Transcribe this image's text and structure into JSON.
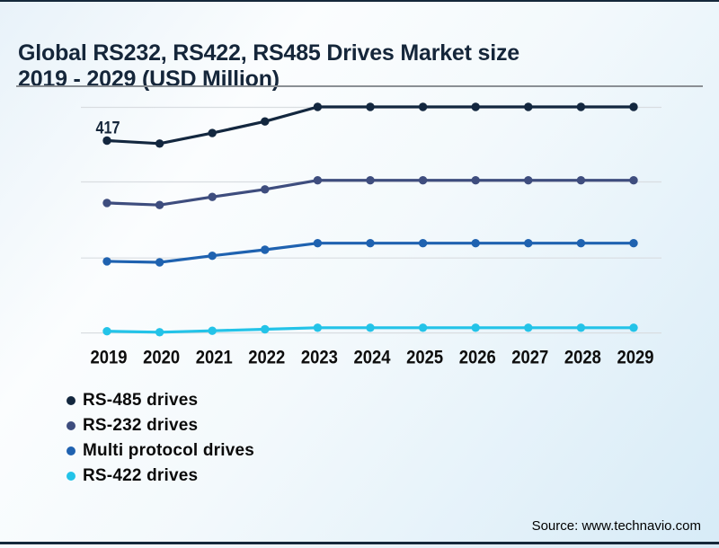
{
  "header": {
    "title_line1": "Global RS232, RS422, RS485 Drives Market size",
    "title_line2": "2019 - 2029 (USD Million)"
  },
  "footer": {
    "source": "Source: www.technavio.com"
  },
  "colors": {
    "title": "#15263a",
    "border_line": "#15283a",
    "gridline": "#d9dde1",
    "axis_label": "#0d0d0d",
    "background_tint": "#d7ebf7"
  },
  "chart_data": {
    "type": "line",
    "title": "Global RS232, RS422, RS485 Drives Market size 2019 - 2029 (USD Million)",
    "unit": "USD Million",
    "categories": [
      "2019",
      "2020",
      "2021",
      "2022",
      "2023",
      "2024",
      "2025",
      "2026",
      "2027",
      "2028",
      "2029"
    ],
    "series": [
      {
        "name": "RS-485 drives",
        "color": "#13273f",
        "values": [
          417,
          411,
          432,
          455,
          484,
          484,
          484,
          484,
          484,
          484,
          484
        ]
      },
      {
        "name": "RS-232 drives",
        "color": "#3e4d7e",
        "values": [
          293,
          289,
          305,
          320,
          338,
          338,
          338,
          338,
          338,
          338,
          338
        ]
      },
      {
        "name": "Multi protocol drives",
        "color": "#1f62b0",
        "values": [
          177,
          175,
          188,
          200,
          213,
          213,
          213,
          213,
          213,
          213,
          213
        ]
      },
      {
        "name": "RS-422 drives",
        "color": "#23c3e8",
        "values": [
          38,
          36,
          39,
          42,
          45,
          45,
          45,
          45,
          45,
          45,
          45
        ]
      }
    ],
    "annotations": [
      {
        "series": "RS-485 drives",
        "category": "2019",
        "text": "417"
      }
    ],
    "ylim": [
      0,
      520
    ],
    "grid": {
      "horizontal_lines": 4,
      "labeled": false
    },
    "y_axis_visible": false,
    "legend_position": "bottom-left"
  }
}
